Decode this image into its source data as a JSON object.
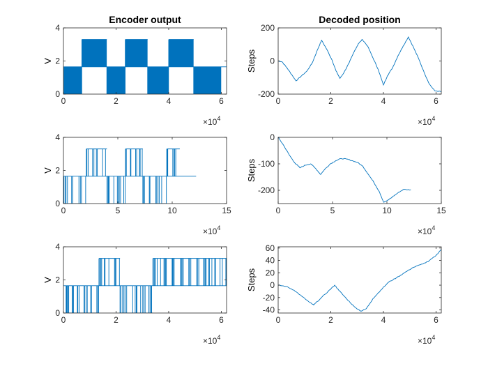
{
  "figure": {
    "titles": [
      "Encoder output",
      "Decoded position"
    ],
    "exponent_label": "10",
    "exponent_power": "4",
    "exponent_prefix": "×"
  },
  "colors": {
    "line": "#0072BD",
    "axis": "#262626",
    "background": "#ffffff"
  },
  "chart_data": [
    {
      "type": "line",
      "panel": "row1-left",
      "title": "Encoder output",
      "xlabel": "",
      "ylabel": "V",
      "xlim": [
        0,
        6.2
      ],
      "ylim": [
        0,
        4
      ],
      "x_ticks": [
        0,
        2,
        4,
        6
      ],
      "x_tick_labels": [
        "0",
        "2",
        "4",
        "6"
      ],
      "y_ticks": [
        0,
        2,
        4
      ],
      "y_tick_labels": [
        "0",
        "2",
        "4"
      ],
      "x_exponent": "×10^4",
      "levels": [
        0,
        1.65,
        3.3
      ],
      "segments": [
        {
          "x0": 0.0,
          "x1": 0.7,
          "mode": "osc",
          "lo": 0,
          "hi": 1.65
        },
        {
          "x0": 0.7,
          "x1": 1.65,
          "mode": "osc",
          "lo": 1.65,
          "hi": 3.3
        },
        {
          "x0": 1.65,
          "x1": 2.35,
          "mode": "osc",
          "lo": 0,
          "hi": 1.65
        },
        {
          "x0": 2.35,
          "x1": 3.2,
          "mode": "osc",
          "lo": 1.65,
          "hi": 3.3
        },
        {
          "x0": 3.2,
          "x1": 4.0,
          "mode": "osc",
          "lo": 0,
          "hi": 1.65
        },
        {
          "x0": 4.0,
          "x1": 4.95,
          "mode": "osc",
          "lo": 1.65,
          "hi": 3.3
        },
        {
          "x0": 4.95,
          "x1": 6.0,
          "mode": "osc",
          "lo": 0,
          "hi": 1.65
        },
        {
          "x0": 6.0,
          "x1": 6.2,
          "mode": "flat",
          "lo": 1.65,
          "hi": 1.65
        }
      ]
    },
    {
      "type": "line",
      "panel": "row1-right",
      "title": "Decoded position",
      "xlabel": "",
      "ylabel": "Steps",
      "xlim": [
        0,
        6.2
      ],
      "ylim": [
        -200,
        200
      ],
      "x_ticks": [
        0,
        2,
        4,
        6
      ],
      "x_tick_labels": [
        "0",
        "2",
        "4",
        "6"
      ],
      "y_ticks": [
        -200,
        0,
        200
      ],
      "y_tick_labels": [
        "-200",
        "0",
        "200"
      ],
      "x_exponent": "×10^4",
      "x": [
        0,
        0.15,
        0.35,
        0.55,
        0.68,
        0.85,
        1.1,
        1.3,
        1.5,
        1.65,
        1.85,
        2.05,
        2.2,
        2.35,
        2.5,
        2.7,
        2.9,
        3.05,
        3.2,
        3.4,
        3.6,
        3.8,
        4.0,
        4.15,
        4.35,
        4.55,
        4.75,
        4.95,
        5.15,
        5.35,
        5.55,
        5.75,
        5.95,
        6.2
      ],
      "y": [
        0,
        -5,
        -45,
        -90,
        -120,
        -95,
        -60,
        -10,
        70,
        125,
        70,
        5,
        -60,
        -105,
        -70,
        -10,
        60,
        105,
        130,
        90,
        20,
        -50,
        -145,
        -90,
        -40,
        30,
        90,
        145,
        80,
        10,
        -70,
        -140,
        -180,
        -185
      ]
    },
    {
      "type": "line",
      "panel": "row2-left",
      "title": "",
      "xlabel": "",
      "ylabel": "V",
      "xlim": [
        0,
        15
      ],
      "ylim": [
        0,
        4
      ],
      "x_ticks": [
        0,
        5,
        10,
        15
      ],
      "x_tick_labels": [
        "0",
        "5",
        "10",
        "15"
      ],
      "y_ticks": [
        0,
        2,
        4
      ],
      "y_tick_labels": [
        "0",
        "2",
        "4"
      ],
      "x_exponent": "×10^4",
      "levels": [
        0,
        1.65,
        3.3
      ],
      "segments": [
        {
          "x0": 0.0,
          "x1": 2.1,
          "mode": "burst",
          "lo": 0,
          "hi": 1.65
        },
        {
          "x0": 2.1,
          "x1": 4.0,
          "mode": "burst",
          "lo": 1.65,
          "hi": 3.3
        },
        {
          "x0": 4.0,
          "x1": 5.7,
          "mode": "burst",
          "lo": 0,
          "hi": 1.65
        },
        {
          "x0": 5.7,
          "x1": 7.3,
          "mode": "burst",
          "lo": 1.65,
          "hi": 3.3
        },
        {
          "x0": 7.3,
          "x1": 9.5,
          "mode": "burst",
          "lo": 0,
          "hi": 1.65
        },
        {
          "x0": 9.5,
          "x1": 10.7,
          "mode": "burst",
          "lo": 1.65,
          "hi": 3.3
        },
        {
          "x0": 10.7,
          "x1": 12.2,
          "mode": "flat",
          "lo": 1.65,
          "hi": 1.65
        }
      ]
    },
    {
      "type": "line",
      "panel": "row2-right",
      "title": "",
      "xlabel": "",
      "ylabel": "Steps",
      "xlim": [
        0,
        15
      ],
      "ylim": [
        -250,
        0
      ],
      "x_ticks": [
        0,
        5,
        10,
        15
      ],
      "x_tick_labels": [
        "0",
        "5",
        "10",
        "15"
      ],
      "y_ticks": [
        -200,
        -100,
        0
      ],
      "y_tick_labels": [
        "-200",
        "-100",
        "0"
      ],
      "x_exponent": "×10^4",
      "x": [
        0,
        0.5,
        1.0,
        1.5,
        2.0,
        2.5,
        3.0,
        3.5,
        3.9,
        4.3,
        4.8,
        5.3,
        5.8,
        6.3,
        6.8,
        7.3,
        7.8,
        8.3,
        8.8,
        9.3,
        9.7,
        10.0,
        10.5,
        11.0,
        11.5,
        12.2
      ],
      "y": [
        0,
        -30,
        -65,
        -95,
        -115,
        -105,
        -100,
        -120,
        -140,
        -120,
        -100,
        -88,
        -80,
        -82,
        -88,
        -95,
        -110,
        -140,
        -170,
        -205,
        -245,
        -240,
        -225,
        -210,
        -197,
        -198
      ]
    },
    {
      "type": "line",
      "panel": "row3-left",
      "title": "",
      "xlabel": "",
      "ylabel": "V",
      "xlim": [
        0,
        6.2
      ],
      "ylim": [
        0,
        4
      ],
      "x_ticks": [
        0,
        2,
        4,
        6
      ],
      "x_tick_labels": [
        "0",
        "2",
        "4",
        "6"
      ],
      "y_ticks": [
        0,
        2,
        4
      ],
      "y_tick_labels": [
        "0",
        "2",
        "4"
      ],
      "x_exponent": "×10^4",
      "levels": [
        0,
        1.65,
        3.3
      ],
      "segments": [
        {
          "x0": 0.0,
          "x1": 0.1,
          "mode": "flat",
          "lo": 1.65,
          "hi": 1.65
        },
        {
          "x0": 0.1,
          "x1": 1.35,
          "mode": "burst",
          "lo": 0,
          "hi": 1.65
        },
        {
          "x0": 1.35,
          "x1": 2.15,
          "mode": "burst",
          "lo": 1.65,
          "hi": 3.3
        },
        {
          "x0": 2.15,
          "x1": 3.4,
          "mode": "burst",
          "lo": 0,
          "hi": 1.65
        },
        {
          "x0": 3.4,
          "x1": 6.2,
          "mode": "burst",
          "lo": 1.65,
          "hi": 3.3
        }
      ]
    },
    {
      "type": "line",
      "panel": "row3-right",
      "title": "",
      "xlabel": "",
      "ylabel": "Steps",
      "xlim": [
        0,
        6.2
      ],
      "ylim": [
        -45,
        62
      ],
      "x_ticks": [
        0,
        2,
        4,
        6
      ],
      "x_tick_labels": [
        "0",
        "2",
        "4",
        "6"
      ],
      "y_ticks": [
        -40,
        -20,
        0,
        20,
        40,
        60
      ],
      "y_tick_labels": [
        "-40",
        "-20",
        "0",
        "20",
        "40",
        "60"
      ],
      "x_exponent": "×10^4",
      "x": [
        0,
        0.3,
        0.6,
        0.9,
        1.2,
        1.35,
        1.6,
        1.9,
        2.15,
        2.3,
        2.6,
        2.9,
        3.15,
        3.35,
        3.6,
        3.9,
        4.2,
        4.5,
        4.8,
        5.1,
        5.4,
        5.7,
        6.0,
        6.2
      ],
      "y": [
        0,
        -2,
        -8,
        -18,
        -28,
        -32,
        -22,
        -10,
        0,
        -8,
        -22,
        -35,
        -42,
        -38,
        -22,
        -8,
        5,
        12,
        20,
        28,
        33,
        38,
        48,
        58
      ]
    }
  ]
}
